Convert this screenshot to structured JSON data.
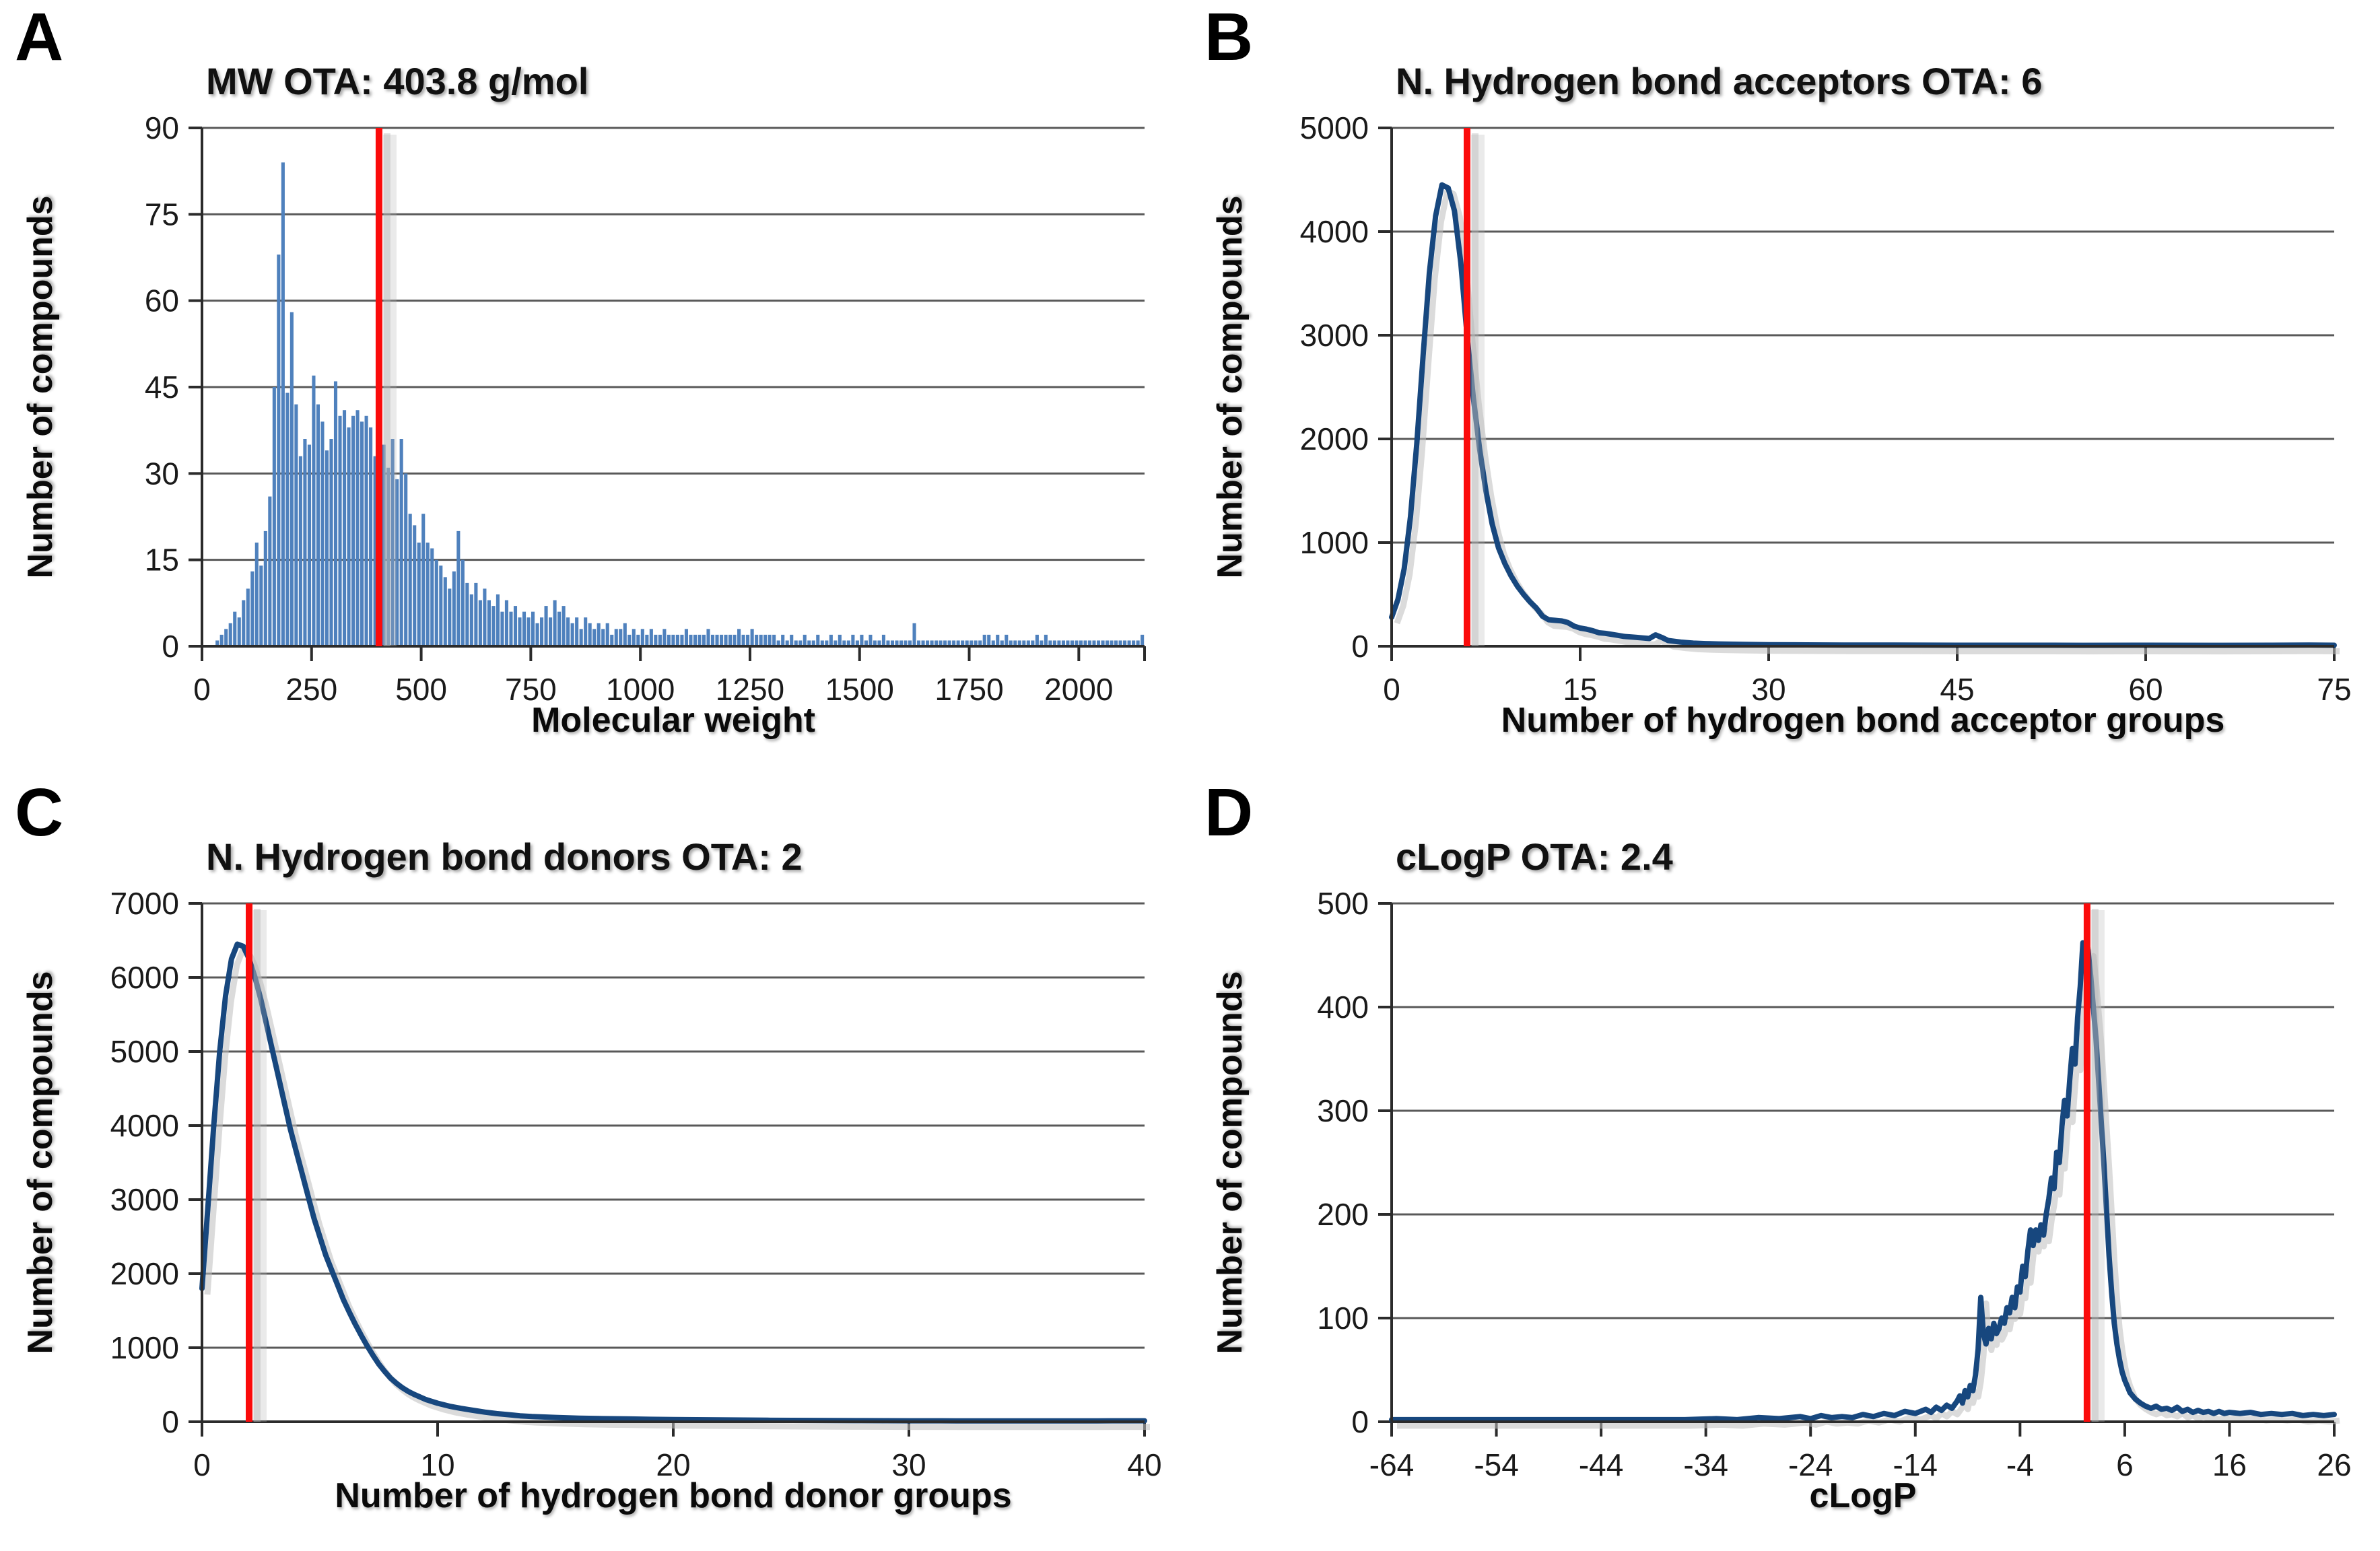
{
  "colors": {
    "bar_fill": "#4f81bd",
    "line_stroke": "#17477e",
    "marker_stroke": "#fb0b0b",
    "marker_shadow": "#b5b5b5",
    "line_shadow": "#bdbdbd",
    "grid": "#595959",
    "axis": "#2b2b2b",
    "text": "#1a1a1a"
  },
  "chart_data": [
    {
      "panel": "A",
      "type": "bar",
      "title": "MW OTA: 403.8 g/mol",
      "xlabel": "Molecular weight",
      "ylabel": "Number of compounds",
      "xlim": [
        0,
        2150
      ],
      "ylim": [
        0,
        90
      ],
      "x_ticks": [
        0,
        250,
        500,
        750,
        1000,
        1250,
        1500,
        1750,
        2000
      ],
      "y_ticks": [
        0,
        15,
        30,
        45,
        60,
        75,
        90
      ],
      "marker_x": 403.8,
      "bin_start": 0,
      "bin_width": 10,
      "values": [
        0,
        0,
        0,
        1,
        2,
        3,
        4,
        6,
        5,
        8,
        10,
        13,
        18,
        14,
        20,
        26,
        45,
        68,
        84,
        44,
        58,
        42,
        33,
        36,
        35,
        47,
        42,
        39,
        34,
        36,
        46,
        40,
        41,
        38,
        40,
        41,
        39,
        40,
        38,
        33,
        34,
        35,
        31,
        36,
        29,
        36,
        30,
        23,
        21,
        18,
        23,
        18,
        17,
        15,
        14,
        12,
        10,
        13,
        20,
        15,
        11,
        9,
        11,
        8,
        10,
        8,
        7,
        9,
        6,
        8,
        6,
        7,
        5,
        6,
        5,
        6,
        4,
        5,
        7,
        5,
        8,
        6,
        7,
        5,
        4,
        5,
        3,
        5,
        4,
        3,
        4,
        3,
        4,
        2,
        3,
        3,
        4,
        2,
        3,
        2,
        3,
        2,
        3,
        2,
        2,
        3,
        2,
        2,
        2,
        2,
        3,
        2,
        2,
        2,
        2,
        3,
        2,
        2,
        2,
        2,
        2,
        2,
        3,
        2,
        2,
        3,
        2,
        2,
        2,
        2,
        2,
        1,
        2,
        1,
        2,
        1,
        1,
        2,
        1,
        1,
        2,
        1,
        1,
        2,
        1,
        2,
        1,
        1,
        2,
        1,
        2,
        1,
        2,
        1,
        1,
        2,
        1,
        1,
        1,
        1,
        1,
        1,
        4,
        1,
        1,
        1,
        1,
        1,
        1,
        1,
        1,
        1,
        1,
        1,
        1,
        1,
        1,
        1,
        2,
        2,
        1,
        2,
        1,
        2,
        1,
        1,
        1,
        1,
        1,
        1,
        2,
        1,
        2,
        1,
        1,
        1,
        1,
        1,
        1,
        1,
        1,
        1,
        1,
        1,
        1,
        1,
        1,
        1,
        1,
        1,
        1,
        1,
        1,
        1,
        2
      ]
    },
    {
      "panel": "B",
      "type": "line",
      "title": "N. Hydrogen bond acceptors OTA: 6",
      "xlabel": "Number of hydrogen bond acceptor groups",
      "ylabel": "Number of compounds",
      "xlim": [
        0,
        75
      ],
      "ylim": [
        0,
        5000
      ],
      "x_ticks": [
        0,
        15,
        30,
        45,
        60,
        75
      ],
      "y_ticks": [
        0,
        1000,
        2000,
        3000,
        4000,
        5000
      ],
      "marker_x": 6,
      "points": [
        [
          0,
          280
        ],
        [
          0.5,
          450
        ],
        [
          1,
          750
        ],
        [
          1.5,
          1250
        ],
        [
          2,
          1950
        ],
        [
          2.5,
          2800
        ],
        [
          3,
          3600
        ],
        [
          3.5,
          4150
        ],
        [
          4,
          4450
        ],
        [
          4.5,
          4420
        ],
        [
          5,
          4200
        ],
        [
          5.5,
          3700
        ],
        [
          6,
          3000
        ],
        [
          6.5,
          2400
        ],
        [
          7,
          1900
        ],
        [
          7.5,
          1500
        ],
        [
          8,
          1180
        ],
        [
          8.5,
          950
        ],
        [
          9,
          800
        ],
        [
          9.5,
          680
        ],
        [
          10,
          580
        ],
        [
          10.5,
          500
        ],
        [
          11,
          430
        ],
        [
          11.5,
          370
        ],
        [
          12,
          290
        ],
        [
          12.5,
          255
        ],
        [
          13,
          250
        ],
        [
          13.5,
          245
        ],
        [
          14,
          230
        ],
        [
          14.5,
          195
        ],
        [
          15,
          175
        ],
        [
          15.5,
          165
        ],
        [
          16,
          150
        ],
        [
          16.5,
          130
        ],
        [
          17,
          125
        ],
        [
          17.5,
          115
        ],
        [
          18,
          105
        ],
        [
          18.5,
          95
        ],
        [
          19,
          90
        ],
        [
          19.5,
          85
        ],
        [
          20,
          80
        ],
        [
          20.5,
          75
        ],
        [
          21,
          110
        ],
        [
          21.5,
          85
        ],
        [
          22,
          55
        ],
        [
          23,
          40
        ],
        [
          24,
          30
        ],
        [
          25,
          25
        ],
        [
          26,
          22
        ],
        [
          28,
          18
        ],
        [
          30,
          15
        ],
        [
          33,
          13
        ],
        [
          36,
          12
        ],
        [
          40,
          11
        ],
        [
          45,
          10
        ],
        [
          50,
          10
        ],
        [
          55,
          9
        ],
        [
          60,
          10
        ],
        [
          65,
          9
        ],
        [
          70,
          10
        ],
        [
          73,
          12
        ],
        [
          75,
          10
        ]
      ]
    },
    {
      "panel": "C",
      "type": "line",
      "title": "N. Hydrogen bond donors OTA: 2",
      "xlabel": "Number of hydrogen bond donor groups",
      "ylabel": "Number of compounds",
      "xlim": [
        0,
        40
      ],
      "ylim": [
        0,
        7000
      ],
      "x_ticks": [
        0,
        10,
        20,
        30,
        40
      ],
      "y_ticks": [
        0,
        1000,
        2000,
        3000,
        4000,
        5000,
        6000,
        7000
      ],
      "marker_x": 2,
      "points": [
        [
          0,
          1800
        ],
        [
          0.25,
          2900
        ],
        [
          0.5,
          4000
        ],
        [
          0.75,
          5000
        ],
        [
          1,
          5750
        ],
        [
          1.25,
          6250
        ],
        [
          1.5,
          6450
        ],
        [
          1.75,
          6420
        ],
        [
          2,
          6250
        ],
        [
          2.25,
          6000
        ],
        [
          2.5,
          5700
        ],
        [
          2.75,
          5350
        ],
        [
          3,
          5000
        ],
        [
          3.25,
          4650
        ],
        [
          3.5,
          4300
        ],
        [
          3.75,
          3950
        ],
        [
          4,
          3650
        ],
        [
          4.25,
          3350
        ],
        [
          4.5,
          3050
        ],
        [
          4.75,
          2750
        ],
        [
          5,
          2500
        ],
        [
          5.25,
          2250
        ],
        [
          5.5,
          2050
        ],
        [
          5.75,
          1850
        ],
        [
          6,
          1650
        ],
        [
          6.25,
          1480
        ],
        [
          6.5,
          1320
        ],
        [
          6.75,
          1170
        ],
        [
          7,
          1030
        ],
        [
          7.25,
          900
        ],
        [
          7.5,
          780
        ],
        [
          7.75,
          680
        ],
        [
          8,
          590
        ],
        [
          8.25,
          520
        ],
        [
          8.5,
          460
        ],
        [
          8.75,
          410
        ],
        [
          9,
          370
        ],
        [
          9.5,
          300
        ],
        [
          10,
          250
        ],
        [
          10.5,
          210
        ],
        [
          11,
          180
        ],
        [
          11.5,
          155
        ],
        [
          12,
          130
        ],
        [
          12.5,
          110
        ],
        [
          13,
          95
        ],
        [
          13.5,
          80
        ],
        [
          14,
          70
        ],
        [
          15,
          58
        ],
        [
          16,
          48
        ],
        [
          17,
          42
        ],
        [
          18,
          38
        ],
        [
          19,
          33
        ],
        [
          20,
          30
        ],
        [
          22,
          25
        ],
        [
          24,
          20
        ],
        [
          26,
          17
        ],
        [
          28,
          15
        ],
        [
          30,
          13
        ],
        [
          32,
          12
        ],
        [
          34,
          11
        ],
        [
          36,
          11
        ],
        [
          38,
          12
        ],
        [
          40,
          13
        ]
      ]
    },
    {
      "panel": "D",
      "type": "line",
      "title": "cLogP OTA: 2.4",
      "xlabel": "cLogP",
      "ylabel": "Number of compounds",
      "xlim": [
        -64,
        26
      ],
      "ylim": [
        0,
        500
      ],
      "x_ticks": [
        -64,
        -54,
        -44,
        -34,
        -24,
        -14,
        -4,
        6,
        16,
        26
      ],
      "y_ticks": [
        0,
        100,
        200,
        300,
        400,
        500
      ],
      "marker_x": 2.4,
      "points": [
        [
          -64,
          2
        ],
        [
          -60,
          2
        ],
        [
          -56,
          2
        ],
        [
          -52,
          2
        ],
        [
          -48,
          2
        ],
        [
          -44,
          2
        ],
        [
          -40,
          2
        ],
        [
          -36,
          2
        ],
        [
          -33,
          3
        ],
        [
          -31,
          2
        ],
        [
          -29,
          4
        ],
        [
          -27,
          3
        ],
        [
          -25,
          5
        ],
        [
          -24,
          3
        ],
        [
          -23,
          6
        ],
        [
          -22,
          4
        ],
        [
          -21,
          5
        ],
        [
          -20,
          4
        ],
        [
          -19,
          7
        ],
        [
          -18,
          5
        ],
        [
          -17,
          8
        ],
        [
          -16,
          6
        ],
        [
          -15,
          10
        ],
        [
          -14,
          8
        ],
        [
          -13,
          12
        ],
        [
          -12.5,
          9
        ],
        [
          -12,
          14
        ],
        [
          -11.5,
          11
        ],
        [
          -11,
          16
        ],
        [
          -10.5,
          13
        ],
        [
          -10,
          20
        ],
        [
          -9.75,
          25
        ],
        [
          -9.5,
          18
        ],
        [
          -9.25,
          30
        ],
        [
          -9,
          24
        ],
        [
          -8.75,
          35
        ],
        [
          -8.5,
          30
        ],
        [
          -8.25,
          45
        ],
        [
          -8,
          70
        ],
        [
          -7.75,
          120
        ],
        [
          -7.5,
          85
        ],
        [
          -7.25,
          75
        ],
        [
          -7,
          90
        ],
        [
          -6.75,
          80
        ],
        [
          -6.5,
          95
        ],
        [
          -6.25,
          85
        ],
        [
          -6,
          90
        ],
        [
          -5.75,
          100
        ],
        [
          -5.5,
          95
        ],
        [
          -5.25,
          110
        ],
        [
          -5,
          105
        ],
        [
          -4.75,
          120
        ],
        [
          -4.5,
          110
        ],
        [
          -4.25,
          130
        ],
        [
          -4,
          125
        ],
        [
          -3.75,
          150
        ],
        [
          -3.5,
          140
        ],
        [
          -3.25,
          165
        ],
        [
          -3,
          185
        ],
        [
          -2.75,
          170
        ],
        [
          -2.5,
          185
        ],
        [
          -2.25,
          175
        ],
        [
          -2,
          190
        ],
        [
          -1.75,
          180
        ],
        [
          -1.5,
          200
        ],
        [
          -1.25,
          215
        ],
        [
          -1,
          235
        ],
        [
          -0.75,
          225
        ],
        [
          -0.5,
          260
        ],
        [
          -0.25,
          250
        ],
        [
          0,
          285
        ],
        [
          0.25,
          310
        ],
        [
          0.5,
          295
        ],
        [
          0.75,
          330
        ],
        [
          1,
          360
        ],
        [
          1.25,
          345
        ],
        [
          1.5,
          390
        ],
        [
          1.75,
          420
        ],
        [
          2,
          462
        ],
        [
          2.25,
          440
        ],
        [
          2.5,
          455
        ],
        [
          2.75,
          430
        ],
        [
          3,
          400
        ],
        [
          3.25,
          370
        ],
        [
          3.5,
          330
        ],
        [
          3.75,
          290
        ],
        [
          4,
          250
        ],
        [
          4.25,
          205
        ],
        [
          4.5,
          160
        ],
        [
          4.75,
          125
        ],
        [
          5,
          95
        ],
        [
          5.25,
          75
        ],
        [
          5.5,
          60
        ],
        [
          5.75,
          48
        ],
        [
          6,
          40
        ],
        [
          6.25,
          34
        ],
        [
          6.5,
          28
        ],
        [
          7,
          22
        ],
        [
          7.5,
          18
        ],
        [
          8,
          15
        ],
        [
          8.5,
          13
        ],
        [
          9,
          15
        ],
        [
          9.5,
          12
        ],
        [
          10,
          13
        ],
        [
          10.5,
          11
        ],
        [
          11,
          14
        ],
        [
          11.5,
          10
        ],
        [
          12,
          12
        ],
        [
          12.5,
          9
        ],
        [
          13,
          11
        ],
        [
          13.5,
          9
        ],
        [
          14,
          10
        ],
        [
          14.5,
          8
        ],
        [
          15,
          10
        ],
        [
          15.5,
          8
        ],
        [
          16,
          9
        ],
        [
          17,
          8
        ],
        [
          18,
          9
        ],
        [
          19,
          7
        ],
        [
          20,
          8
        ],
        [
          21,
          7
        ],
        [
          22,
          8
        ],
        [
          23,
          6
        ],
        [
          24,
          7
        ],
        [
          25,
          6
        ],
        [
          26,
          7
        ]
      ]
    }
  ]
}
